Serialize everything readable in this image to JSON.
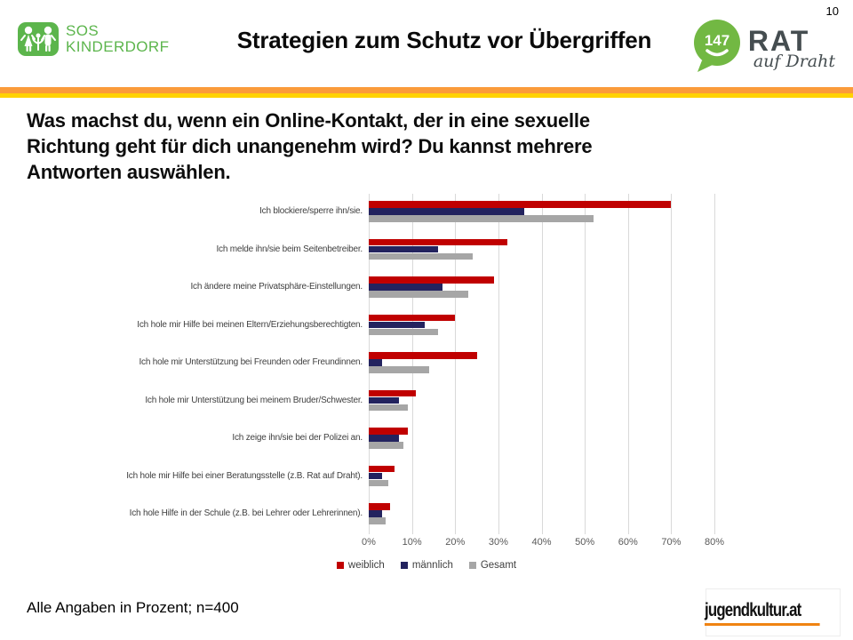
{
  "page_number": "10",
  "header": {
    "sos_logo": {
      "line1": "SOS",
      "line2": "KINDERDORF"
    },
    "title": "Strategien zum Schutz vor Übergriffen",
    "rat_logo": {
      "number": "147",
      "word": "RAT",
      "script": "auf Draht"
    }
  },
  "question": {
    "lines": [
      "Was machst du, wenn ein Online-Kontakt, der in eine sexuelle",
      "Richtung geht für dich unangenehm wird? Du kannst mehrere",
      "Antworten auswählen."
    ]
  },
  "chart_data": {
    "type": "bar",
    "orientation": "horizontal",
    "title": "",
    "xlabel": "",
    "ylabel": "",
    "xlim": [
      0,
      80
    ],
    "x_ticks": [
      "0%",
      "10%",
      "20%",
      "30%",
      "40%",
      "50%",
      "60%",
      "70%",
      "80%"
    ],
    "grid": true,
    "legend_position": "bottom",
    "categories": [
      "Ich blockiere/sperre ihn/sie.",
      "Ich melde ihn/sie beim Seitenbetreiber.",
      "Ich ändere meine Privatsphäre-Einstellungen.",
      "Ich hole mir Hilfe bei meinen Eltern/Erziehungsberechtigten.",
      "Ich hole mir Unterstützung bei Freunden oder Freundinnen.",
      "Ich hole mir Unterstützung bei meinem Bruder/Schwester.",
      "Ich zeige ihn/sie bei der Polizei an.",
      "Ich hole mir Hilfe bei einer Beratungsstelle (z.B. Rat auf Draht).",
      "Ich hole Hilfe in der Schule (z.B. bei Lehrer oder Lehrerinnen)."
    ],
    "series": [
      {
        "name": "weiblich",
        "color": "#C00000",
        "values": [
          70,
          32,
          29,
          20,
          25,
          11,
          9,
          6,
          5
        ]
      },
      {
        "name": "männlich",
        "color": "#23235F",
        "values": [
          36,
          16,
          17,
          13,
          3,
          7,
          7,
          3,
          3
        ]
      },
      {
        "name": "Gesamt",
        "color": "#A6A6A6",
        "values": [
          52,
          24,
          23,
          16,
          14,
          9,
          8,
          4.5,
          4
        ]
      }
    ]
  },
  "footer": {
    "note": "Alle Angaben in Prozent; n=400",
    "logo_text": "jugendkultur.at"
  },
  "colors": {
    "accent-orange": "#FB9B3A",
    "accent-yellow": "#FFD203",
    "sos-green": "#5CB54C",
    "rat-green": "#72B843",
    "rat-text": "#454D50",
    "juk-orange": "#F08312",
    "grid": "#D9D9D9",
    "axis-text": "#595959",
    "label-text": "#404040"
  }
}
